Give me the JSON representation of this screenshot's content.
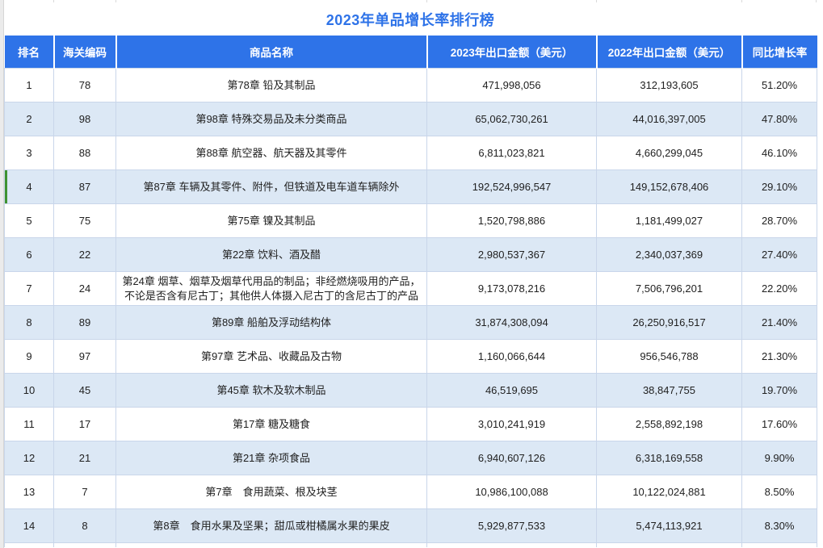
{
  "title": "2023年单品增长率排行榜",
  "table": {
    "columns": [
      {
        "label": "排名"
      },
      {
        "label": "海关编码"
      },
      {
        "label": "商品名称"
      },
      {
        "label": "2023年出口金额（美元）"
      },
      {
        "label": "2022年出口金额（美元）"
      },
      {
        "label": "同比增长率"
      }
    ],
    "rows": [
      {
        "rank": "1",
        "hs_code": "78",
        "name": "第78章 铅及其制品",
        "amount_2023": "471,998,056",
        "amount_2022": "312,193,605",
        "growth": "51.20%",
        "selected": false
      },
      {
        "rank": "2",
        "hs_code": "98",
        "name": "第98章 特殊交易品及未分类商品",
        "amount_2023": "65,062,730,261",
        "amount_2022": "44,016,397,005",
        "growth": "47.80%",
        "selected": false
      },
      {
        "rank": "3",
        "hs_code": "88",
        "name": "第88章 航空器、航天器及其零件",
        "amount_2023": "6,811,023,821",
        "amount_2022": "4,660,299,045",
        "growth": "46.10%",
        "selected": false
      },
      {
        "rank": "4",
        "hs_code": "87",
        "name": "第87章 车辆及其零件、附件，但铁道及电车道车辆除外",
        "amount_2023": "192,524,996,547",
        "amount_2022": "149,152,678,406",
        "growth": "29.10%",
        "selected": true
      },
      {
        "rank": "5",
        "hs_code": "75",
        "name": "第75章 镍及其制品",
        "amount_2023": "1,520,798,886",
        "amount_2022": "1,181,499,027",
        "growth": "28.70%",
        "selected": false
      },
      {
        "rank": "6",
        "hs_code": "22",
        "name": "第22章 饮料、酒及醋",
        "amount_2023": "2,980,537,367",
        "amount_2022": "2,340,037,369",
        "growth": "27.40%",
        "selected": false
      },
      {
        "rank": "7",
        "hs_code": "24",
        "name": "第24章 烟草、烟草及烟草代用品的制品；非经燃烧吸用的产品，不论是否含有尼古丁；其他供人体摄入尼古丁的含尼古丁的产品",
        "amount_2023": "9,173,078,216",
        "amount_2022": "7,506,796,201",
        "growth": "22.20%",
        "selected": false
      },
      {
        "rank": "8",
        "hs_code": "89",
        "name": "第89章 船舶及浮动结构体",
        "amount_2023": "31,874,308,094",
        "amount_2022": "26,250,916,517",
        "growth": "21.40%",
        "selected": false
      },
      {
        "rank": "9",
        "hs_code": "97",
        "name": "第97章 艺术品、收藏品及古物",
        "amount_2023": "1,160,066,644",
        "amount_2022": "956,546,788",
        "growth": "21.30%",
        "selected": false
      },
      {
        "rank": "10",
        "hs_code": "45",
        "name": "第45章 软木及软木制品",
        "amount_2023": "46,519,695",
        "amount_2022": "38,847,755",
        "growth": "19.70%",
        "selected": false
      },
      {
        "rank": "11",
        "hs_code": "17",
        "name": "第17章 糖及糖食",
        "amount_2023": "3,010,241,919",
        "amount_2022": "2,558,892,198",
        "growth": "17.60%",
        "selected": false
      },
      {
        "rank": "12",
        "hs_code": "21",
        "name": "第21章 杂项食品",
        "amount_2023": "6,940,607,126",
        "amount_2022": "6,318,169,558",
        "growth": "9.90%",
        "selected": false
      },
      {
        "rank": "13",
        "hs_code": "7",
        "name": "第7章　食用蔬菜、根及块茎",
        "amount_2023": "10,986,100,088",
        "amount_2022": "10,122,024,881",
        "growth": "8.50%",
        "selected": false
      },
      {
        "rank": "14",
        "hs_code": "8",
        "name": "第8章　食用水果及坚果；甜瓜或柑橘属水果的果皮",
        "amount_2023": "5,929,877,533",
        "amount_2022": "5,474,113,921",
        "growth": "8.30%",
        "selected": false
      }
    ]
  },
  "colors": {
    "header_bg": "#2e73e8",
    "title_text": "#2e73e8",
    "row_alt_bg": "#dce8f5",
    "row_border": "#c9d6ea",
    "selected_marker_green": "#3f9231"
  }
}
